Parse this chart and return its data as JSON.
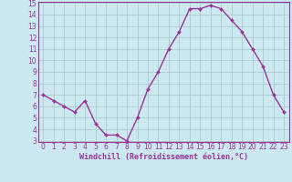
{
  "x": [
    0,
    1,
    2,
    3,
    4,
    5,
    6,
    7,
    8,
    9,
    10,
    11,
    12,
    13,
    14,
    15,
    16,
    17,
    18,
    19,
    20,
    21,
    22,
    23
  ],
  "y": [
    7.0,
    6.5,
    6.0,
    5.5,
    6.5,
    4.5,
    3.5,
    3.5,
    3.0,
    5.0,
    7.5,
    9.0,
    11.0,
    12.5,
    14.5,
    14.5,
    14.8,
    14.5,
    13.5,
    12.5,
    11.0,
    9.5,
    7.0,
    5.5
  ],
  "line_color": "#993399",
  "marker": "D",
  "marker_size": 2.0,
  "bg_color": "#cce8f0",
  "grid_color": "#aacccc",
  "xlabel": "Windchill (Refroidissement éolien,°C)",
  "xlabel_color": "#993399",
  "tick_color": "#993399",
  "ylim": [
    3,
    15
  ],
  "xlim": [
    -0.5,
    23.5
  ],
  "yticks": [
    3,
    4,
    5,
    6,
    7,
    8,
    9,
    10,
    11,
    12,
    13,
    14,
    15
  ],
  "xticks": [
    0,
    1,
    2,
    3,
    4,
    5,
    6,
    7,
    8,
    9,
    10,
    11,
    12,
    13,
    14,
    15,
    16,
    17,
    18,
    19,
    20,
    21,
    22,
    23
  ],
  "line_width": 1.0,
  "spine_color": "#993399"
}
